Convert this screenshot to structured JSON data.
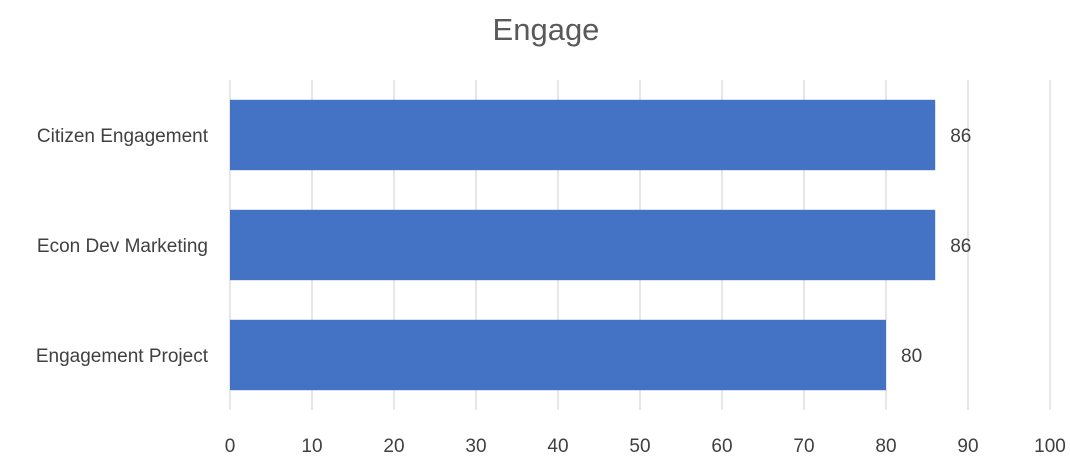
{
  "chart_data": {
    "type": "bar",
    "orientation": "horizontal",
    "title": "Engage",
    "xlabel": "",
    "ylabel": "",
    "categories": [
      "Citizen Engagement",
      "Econ Dev Marketing",
      "Engagement Project"
    ],
    "values": [
      86,
      86,
      80
    ],
    "xlim": [
      0,
      100
    ],
    "x_ticks": [
      0,
      10,
      20,
      30,
      40,
      50,
      60,
      70,
      80,
      90,
      100
    ],
    "grid": true,
    "legend": "none",
    "data_labels": true,
    "bar_color": "#4472c4"
  }
}
